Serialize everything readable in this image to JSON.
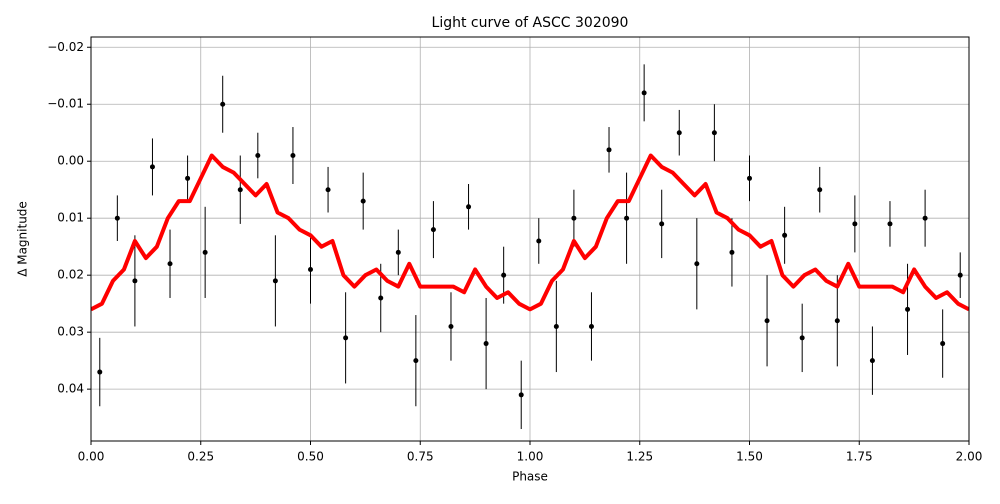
{
  "chart_data": {
    "type": "scatter",
    "title": "Light curve of ASCC 302090",
    "x_label": "Phase",
    "y_label": "Δ Magnitude",
    "xlim": [
      0,
      2
    ],
    "ylim": [
      0.0491,
      -0.0218
    ],
    "grid": true,
    "xticks": [
      {
        "value": 0,
        "label": "0.00"
      },
      {
        "value": 0.25,
        "label": "0.25"
      },
      {
        "value": 0.5,
        "label": "0.50"
      },
      {
        "value": 0.75,
        "label": "0.75"
      },
      {
        "value": 1,
        "label": "1.00"
      },
      {
        "value": 1.25,
        "label": "1.25"
      },
      {
        "value": 1.5,
        "label": "1.50"
      },
      {
        "value": 1.75,
        "label": "1.75"
      },
      {
        "value": 2,
        "label": "2.00"
      }
    ],
    "yticks": [
      {
        "value": -0.02,
        "label": "−0.02"
      },
      {
        "value": -0.01,
        "label": "−0.01"
      },
      {
        "value": 0,
        "label": "0.00"
      },
      {
        "value": 0.01,
        "label": "0.01"
      },
      {
        "value": 0.02,
        "label": "0.02"
      },
      {
        "value": 0.03,
        "label": "0.03"
      },
      {
        "value": 0.04,
        "label": "0.04"
      }
    ],
    "series": [
      {
        "type": "errorbar",
        "color": "#000000",
        "x": [
          0.02,
          0.06,
          0.1,
          0.14,
          0.18,
          0.22,
          0.26,
          0.3,
          0.34,
          0.38,
          0.42,
          0.46,
          0.5,
          0.54,
          0.58,
          0.62,
          0.66,
          0.7,
          0.74,
          0.78,
          0.82,
          0.86,
          0.9,
          0.94,
          0.98,
          1.02,
          1.06,
          1.1,
          1.14,
          1.18,
          1.22,
          1.26,
          1.3,
          1.34,
          1.38,
          1.42,
          1.46,
          1.5,
          1.54,
          1.58,
          1.62,
          1.66,
          1.7,
          1.74,
          1.78,
          1.82,
          1.86,
          1.9,
          1.94,
          1.98
        ],
        "values": [
          0.037,
          0.01,
          0.021,
          0.001,
          0.018,
          0.003,
          0.016,
          -0.01,
          0.005,
          -0.001,
          0.021,
          -0.001,
          0.019,
          0.005,
          0.031,
          0.007,
          0.024,
          0.016,
          0.035,
          0.012,
          0.029,
          0.008,
          0.032,
          0.02,
          0.041,
          0.014,
          0.029,
          0.01,
          0.029,
          -0.002,
          0.01,
          -0.012,
          0.011,
          -0.005,
          0.018,
          -0.005,
          0.016,
          0.003,
          0.028,
          0.013,
          0.031,
          0.005,
          0.028,
          0.011,
          0.035,
          0.011,
          0.026,
          0.01,
          0.032,
          0.02
        ],
        "errors": [
          0.006,
          0.004,
          0.008,
          0.005,
          0.006,
          0.004,
          0.008,
          0.005,
          0.006,
          0.004,
          0.008,
          0.005,
          0.006,
          0.004,
          0.008,
          0.005,
          0.006,
          0.004,
          0.008,
          0.005,
          0.006,
          0.004,
          0.008,
          0.005,
          0.006,
          0.004,
          0.008,
          0.005,
          0.006,
          0.004,
          0.008,
          0.005,
          0.006,
          0.004,
          0.008,
          0.005,
          0.006,
          0.004,
          0.008,
          0.005,
          0.006,
          0.004,
          0.008,
          0.005,
          0.006,
          0.004,
          0.008,
          0.005,
          0.006,
          0.004
        ]
      },
      {
        "type": "line",
        "color": "#ff0000",
        "x": [
          0,
          0.025,
          0.05,
          0.075,
          0.1,
          0.125,
          0.15,
          0.175,
          0.2,
          0.225,
          0.25,
          0.275,
          0.3,
          0.325,
          0.35,
          0.375,
          0.4,
          0.425,
          0.45,
          0.475,
          0.5,
          0.525,
          0.55,
          0.575,
          0.6,
          0.625,
          0.65,
          0.675,
          0.7,
          0.725,
          0.75,
          0.775,
          0.8,
          0.825,
          0.85,
          0.875,
          0.9,
          0.925,
          0.95,
          0.975,
          1,
          1.025,
          1.05,
          1.075,
          1.1,
          1.125,
          1.15,
          1.175,
          1.2,
          1.225,
          1.25,
          1.275,
          1.3,
          1.325,
          1.35,
          1.375,
          1.4,
          1.425,
          1.45,
          1.475,
          1.5,
          1.525,
          1.55,
          1.575,
          1.6,
          1.625,
          1.65,
          1.675,
          1.7,
          1.725,
          1.75,
          1.775,
          1.8,
          1.825,
          1.85,
          1.875,
          1.9,
          1.925,
          1.95,
          1.975,
          2
        ],
        "values": [
          0.026,
          0.025,
          0.021,
          0.019,
          0.014,
          0.017,
          0.015,
          0.01,
          0.007,
          0.007,
          0.003,
          -0.001,
          0.001,
          0.002,
          0.004,
          0.006,
          0.004,
          0.009,
          0.01,
          0.012,
          0.013,
          0.015,
          0.014,
          0.02,
          0.022,
          0.02,
          0.019,
          0.021,
          0.022,
          0.018,
          0.022,
          0.022,
          0.022,
          0.022,
          0.023,
          0.019,
          0.022,
          0.024,
          0.023,
          0.025,
          0.026,
          0.025,
          0.021,
          0.019,
          0.014,
          0.017,
          0.015,
          0.01,
          0.007,
          0.007,
          0.003,
          -0.001,
          0.001,
          0.002,
          0.004,
          0.006,
          0.004,
          0.009,
          0.01,
          0.012,
          0.013,
          0.015,
          0.014,
          0.02,
          0.022,
          0.02,
          0.019,
          0.021,
          0.022,
          0.018,
          0.022,
          0.022,
          0.022,
          0.022,
          0.023,
          0.019,
          0.022,
          0.024,
          0.023,
          0.025,
          0.026
        ]
      }
    ]
  }
}
